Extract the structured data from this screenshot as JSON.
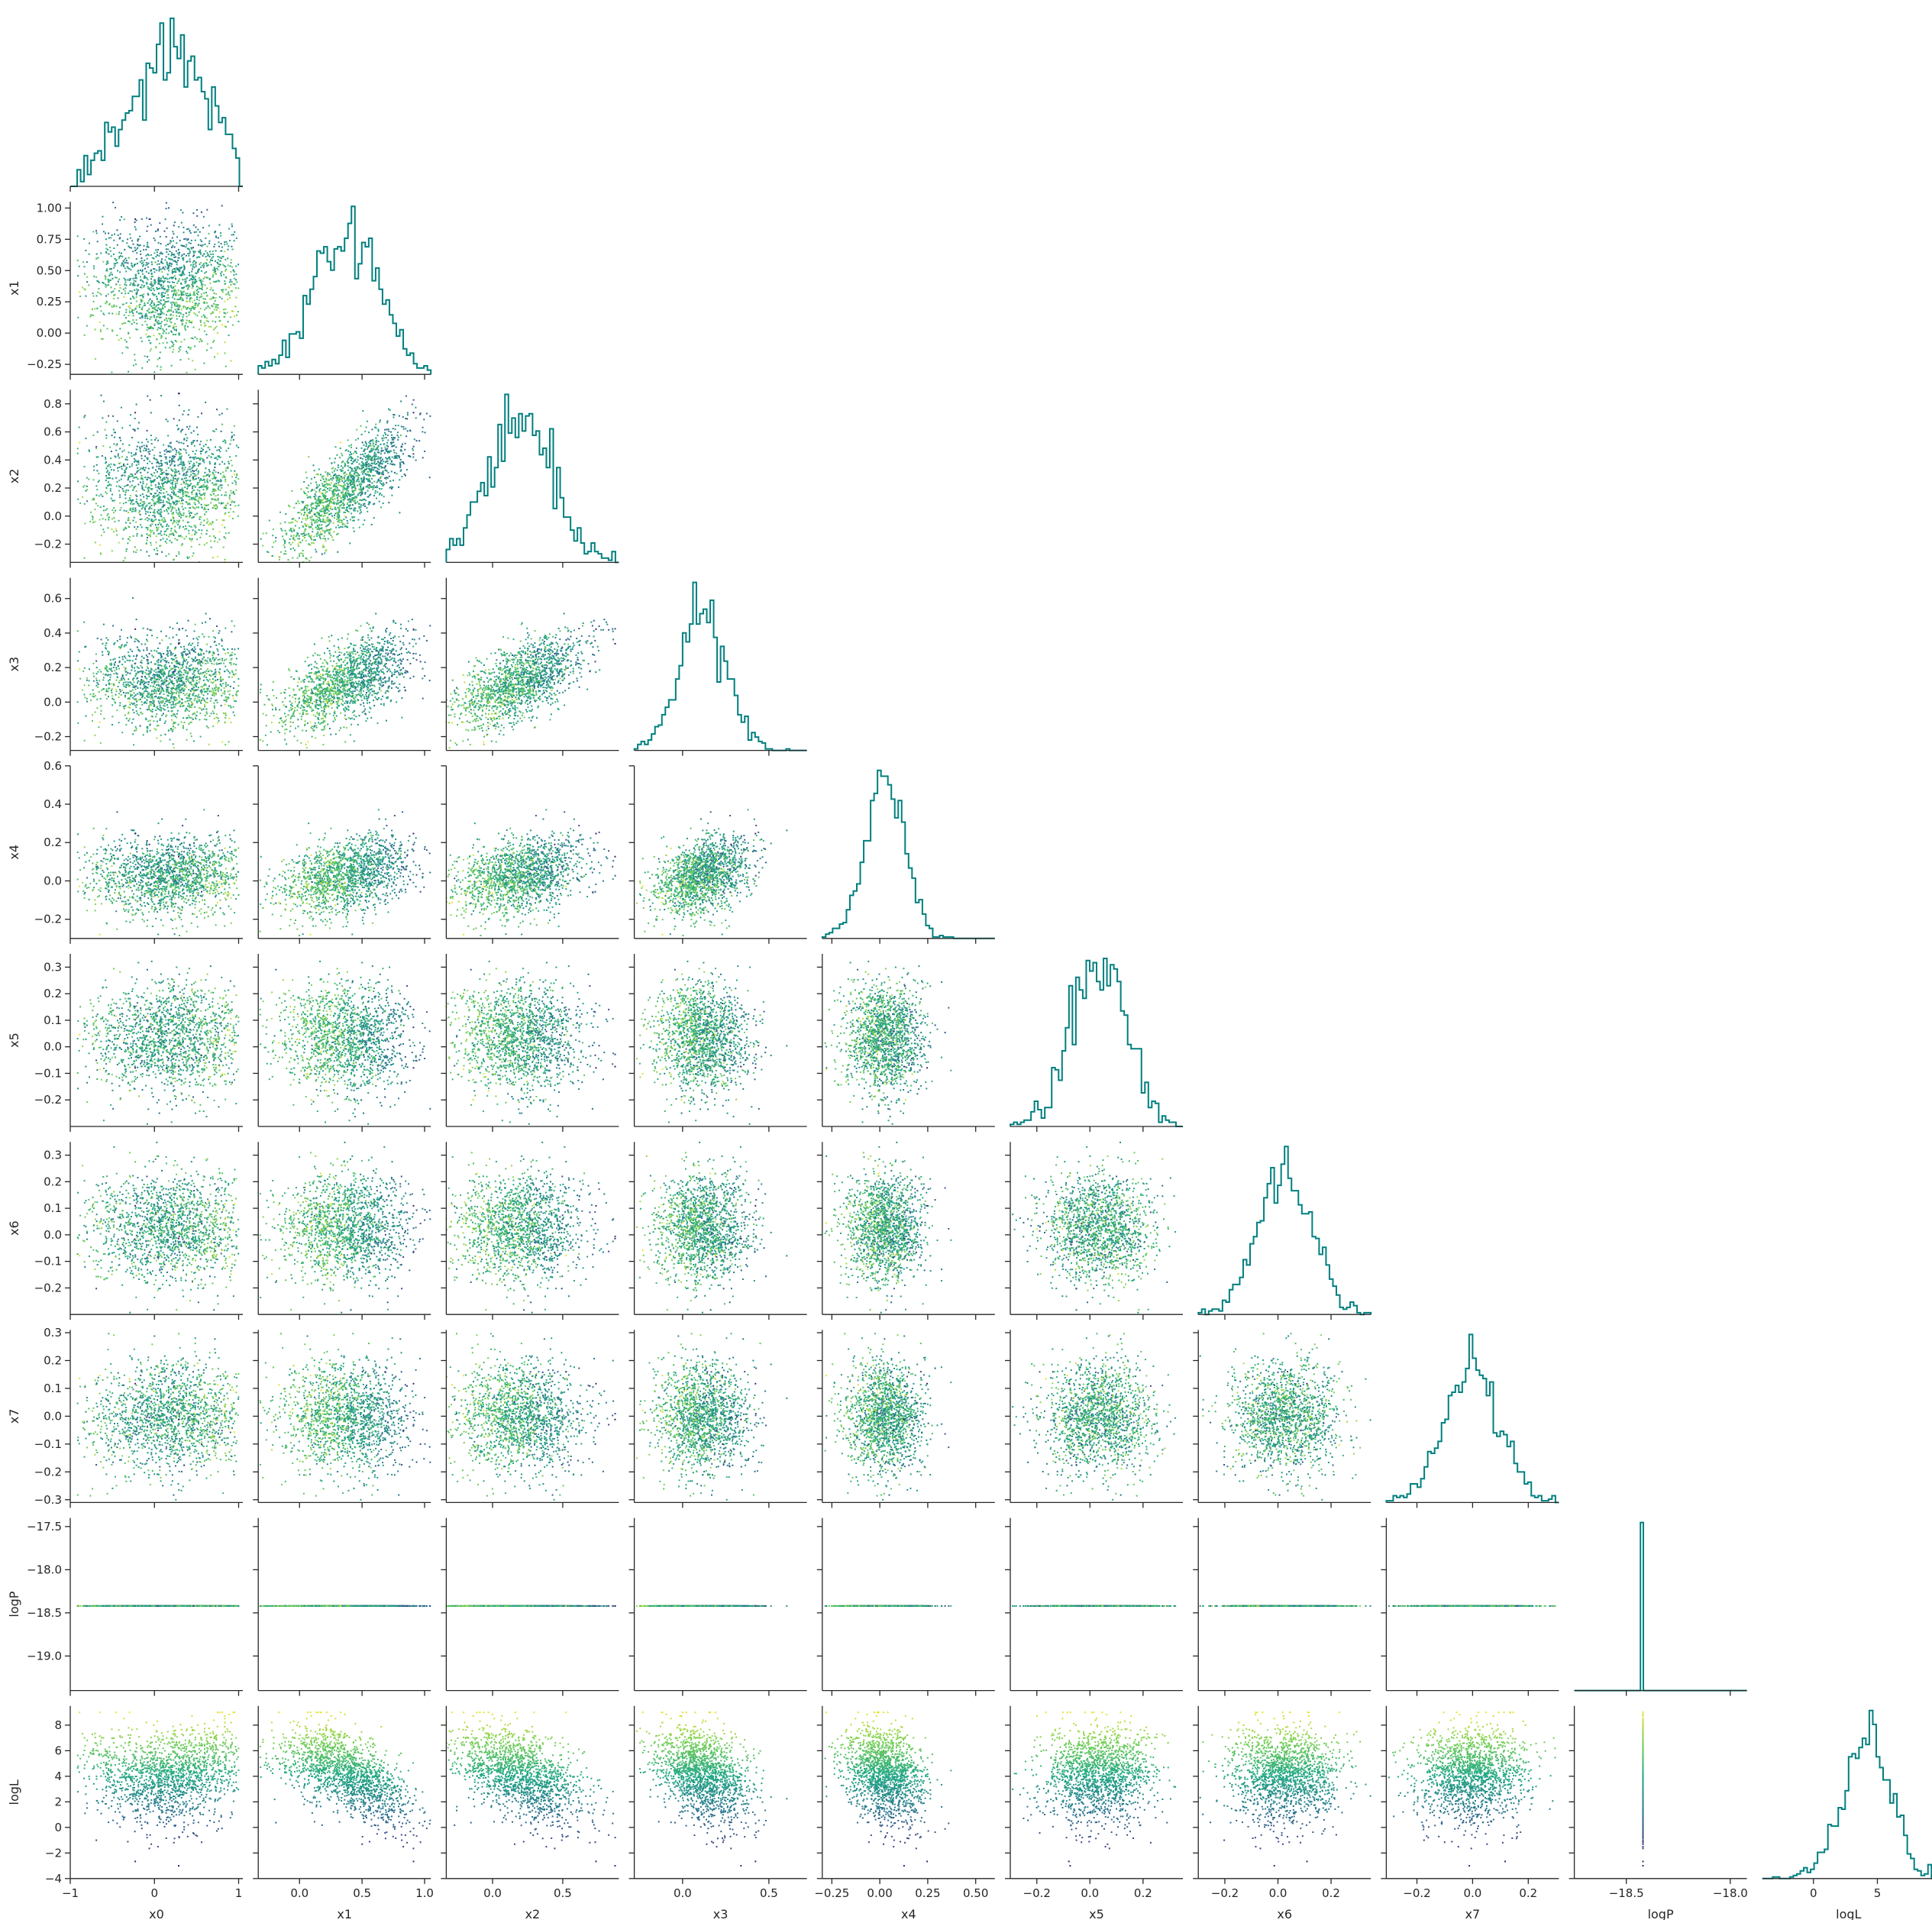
{
  "chart_data": {
    "type": "scatter",
    "kind": "corner-plot",
    "colormap": "viridis",
    "color_by": "logL",
    "histogram_color": "#007f7f",
    "axis_color": "#262626",
    "n_points": 1600,
    "variables": [
      "x0",
      "x1",
      "x2",
      "x3",
      "x4",
      "x5",
      "x6",
      "x7",
      "logP",
      "logL"
    ],
    "axis_labels": [
      "x0",
      "x1",
      "x2",
      "x3",
      "x4",
      "x5",
      "x6",
      "x7",
      "logP",
      "logL"
    ],
    "ranges": [
      [
        -1.0,
        1.05
      ],
      [
        -0.33,
        1.05
      ],
      [
        -0.33,
        0.9
      ],
      [
        -0.28,
        0.72
      ],
      [
        -0.3,
        0.6
      ],
      [
        -0.3,
        0.35
      ],
      [
        -0.3,
        0.35
      ],
      [
        -0.31,
        0.31
      ],
      [
        -19.4,
        -17.4
      ],
      [
        -4,
        9.5
      ]
    ],
    "x_ranges": {
      "logP": [
        -18.75,
        -17.92
      ]
    },
    "ticks": [
      [
        -1,
        0,
        1
      ],
      [
        -0.25,
        0.0,
        0.25,
        0.5,
        0.75,
        1.0
      ],
      [
        -0.2,
        0.0,
        0.2,
        0.4,
        0.6,
        0.8
      ],
      [
        -0.2,
        0.0,
        0.2,
        0.4,
        0.6
      ],
      [
        -0.2,
        0.0,
        0.2,
        0.4,
        0.6
      ],
      [
        -0.2,
        -0.1,
        0.0,
        0.1,
        0.2,
        0.3
      ],
      [
        -0.2,
        -0.1,
        0.0,
        0.1,
        0.2,
        0.3
      ],
      [
        -0.3,
        -0.2,
        -0.1,
        0.0,
        0.1,
        0.2,
        0.3
      ],
      [
        -19.0,
        -18.5,
        -18.0,
        -17.5
      ],
      [
        -4,
        -2,
        0,
        2,
        4,
        6,
        8
      ]
    ],
    "x_ticks": {
      "x4": [
        -0.25,
        0.0,
        0.25,
        0.5
      ],
      "x7": [
        -0.2,
        0.0,
        0.2
      ],
      "logP": [
        -18.5,
        -18.0
      ],
      "logL": [
        0,
        5
      ]
    },
    "tick_labels": [
      [
        "−1",
        "0",
        "1"
      ],
      [
        "−0.25",
        "0.00",
        "0.25",
        "0.50",
        "0.75",
        "1.00"
      ],
      [
        "−0.2",
        "0.0",
        "0.2",
        "0.4",
        "0.6",
        "0.8"
      ],
      [
        "−0.2",
        "0.0",
        "0.2",
        "0.4",
        "0.6"
      ],
      [
        "−0.2",
        "0.0",
        "0.2",
        "0.4",
        "0.6"
      ],
      [
        "−0.2",
        "−0.1",
        "0.0",
        "0.1",
        "0.2",
        "0.3"
      ],
      [
        "−0.2",
        "−0.1",
        "0.0",
        "0.1",
        "0.2",
        "0.3"
      ],
      [
        "−0.3",
        "−0.2",
        "−0.1",
        "0.0",
        "0.1",
        "0.2",
        "0.3"
      ],
      [
        "−19.0",
        "−18.5",
        "−18.0",
        "−17.5"
      ],
      [
        "−4",
        "−2",
        "0",
        "2",
        "4",
        "6",
        "8"
      ]
    ],
    "x_tick_labels": {
      "x0": [
        "−1",
        "0",
        "1"
      ],
      "x1": [
        "0.0",
        "0.5",
        "1.0"
      ],
      "x2": [
        "0.0",
        "0.5"
      ],
      "x3": [
        "0.0",
        "0.5"
      ],
      "x4": [
        "−0.25",
        "0.00",
        "0.25",
        "0.50"
      ],
      "x5": [
        "−0.2",
        "0.0",
        "0.2"
      ],
      "x6": [
        "−0.2",
        "0.0",
        "0.2"
      ],
      "x7": [
        "−0.2",
        "0.0",
        "0.2"
      ],
      "logP": [
        "−18.5",
        "−18.0"
      ],
      "logL": [
        "0",
        "5"
      ]
    },
    "x_tick_values": {
      "x0": [
        -1,
        0,
        1
      ],
      "x1": [
        0.0,
        0.5,
        1.0
      ],
      "x2": [
        0.0,
        0.5
      ],
      "x3": [
        0.0,
        0.5
      ],
      "x4": [
        -0.25,
        0.0,
        0.25,
        0.5
      ],
      "x5": [
        -0.2,
        0.0,
        0.2
      ],
      "x6": [
        -0.2,
        0.0,
        0.2
      ],
      "x7": [
        -0.2,
        0.0,
        0.2
      ],
      "logP": [
        -18.5,
        -18.0
      ],
      "logL": [
        0,
        5
      ]
    },
    "y_tick_values": {
      "x1": [
        -0.25,
        0.0,
        0.25,
        0.5,
        0.75,
        1.0
      ],
      "x2": [
        -0.2,
        0.0,
        0.2,
        0.4,
        0.6,
        0.8
      ],
      "x3": [
        -0.2,
        0.0,
        0.2,
        0.4,
        0.6
      ],
      "x4": [
        -0.2,
        0.0,
        0.2,
        0.4,
        0.6
      ],
      "x5": [
        -0.2,
        -0.1,
        0.0,
        0.1,
        0.2,
        0.3
      ],
      "x6": [
        -0.2,
        -0.1,
        0.0,
        0.1,
        0.2,
        0.3
      ],
      "x7": [
        -0.3,
        -0.2,
        -0.1,
        0.0,
        0.1,
        0.2,
        0.3
      ],
      "logP": [
        -19.0,
        -18.5,
        -18.0,
        -17.5
      ],
      "logL": [
        -4,
        -2,
        0,
        2,
        4,
        6,
        8
      ]
    },
    "y_tick_labels": {
      "x1": [
        "−0.25",
        "0.00",
        "0.25",
        "0.50",
        "0.75",
        "1.00"
      ],
      "x2": [
        "−0.2",
        "0.0",
        "0.2",
        "0.4",
        "0.6",
        "0.8"
      ],
      "x3": [
        "−0.2",
        "0.0",
        "0.2",
        "0.4",
        "0.6"
      ],
      "x4": [
        "−0.2",
        "0.0",
        "0.2",
        "0.4",
        "0.6"
      ],
      "x5": [
        "−0.2",
        "−0.1",
        "0.0",
        "0.1",
        "0.2",
        "0.3"
      ],
      "x6": [
        "−0.2",
        "−0.1",
        "0.0",
        "0.1",
        "0.2",
        "0.3"
      ],
      "x7": [
        "−0.3",
        "−0.2",
        "−0.1",
        "0.0",
        "0.1",
        "0.2",
        "0.3"
      ],
      "logP": [
        "−19.0",
        "−18.5",
        "−18.0",
        "−17.5"
      ],
      "logL": [
        "−4",
        "−2",
        "0",
        "2",
        "4",
        "6",
        "8"
      ]
    },
    "logP_constant": -18.42,
    "marginals": {
      "x0": {
        "shape": "broad hump, flat top",
        "center": 0.2,
        "spread": 0.55
      },
      "x1": {
        "center": 0.38,
        "spread": 0.26
      },
      "x2": {
        "center": 0.2,
        "spread": 0.22
      },
      "x3": {
        "center": 0.12,
        "spread": 0.14
      },
      "x4": {
        "center": 0.03,
        "spread": 0.11
      },
      "x5": {
        "center": 0.03,
        "spread": 0.1
      },
      "x6": {
        "center": 0.03,
        "spread": 0.1
      },
      "x7": {
        "center": 0.0,
        "spread": 0.1
      },
      "logP": {
        "spike_at": -18.42
      },
      "logL": {
        "center": 4.0,
        "spread": 2.4,
        "left_skewed": true
      }
    },
    "grid": false,
    "legend": "none"
  }
}
